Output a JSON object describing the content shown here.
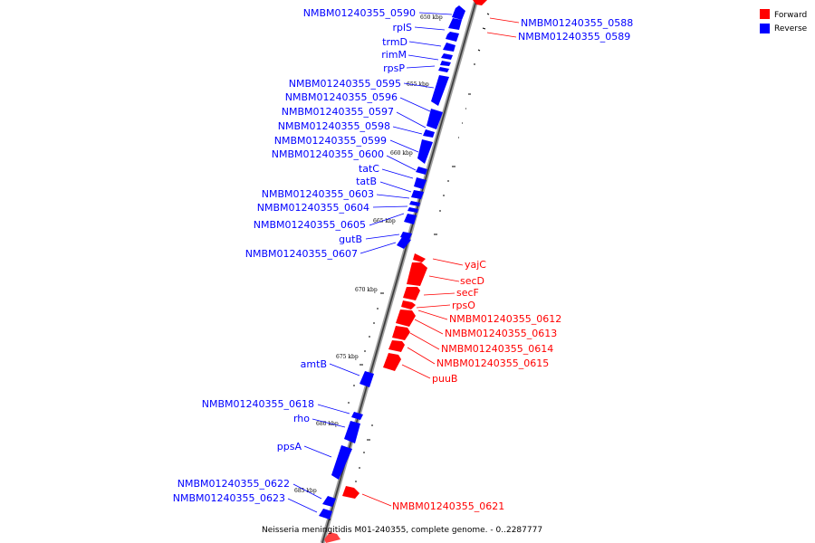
{
  "caption": "Neisseria meningitidis M01-240355, complete genome. - 0..2287777",
  "legend": [
    {
      "label": "Forward",
      "color": "#ff0000"
    },
    {
      "label": "Reverse",
      "color": "#0000ff"
    }
  ],
  "kbp_marks": [
    "650 kbp",
    "655 kbp",
    "660 kbp",
    "665 kbp",
    "670 kbp",
    "675 kbp",
    "680 kbp",
    "685 kbp"
  ],
  "reverse_labels": [
    "NMBM01240355_0590",
    "rplS",
    "trmD",
    "rimM",
    "rpsP",
    "NMBM01240355_0595",
    "NMBM01240355_0596",
    "NMBM01240355_0597",
    "NMBM01240355_0598",
    "NMBM01240355_0599",
    "NMBM01240355_0600",
    "tatC",
    "tatB",
    "NMBM01240355_0603",
    "NMBM01240355_0604",
    "NMBM01240355_0605",
    "gutB",
    "NMBM01240355_0607",
    "amtB",
    "NMBM01240355_0618",
    "rho",
    "ppsA",
    "NMBM01240355_0622",
    "NMBM01240355_0623"
  ],
  "forward_labels": [
    "NMBM01240355_0588",
    "NMBM01240355_0589",
    "yajC",
    "secD",
    "secF",
    "rpsO",
    "NMBM01240355_0612",
    "NMBM01240355_0613",
    "NMBM01240355_0614",
    "NMBM01240355_0615",
    "puuB",
    "NMBM01240355_0621"
  ]
}
